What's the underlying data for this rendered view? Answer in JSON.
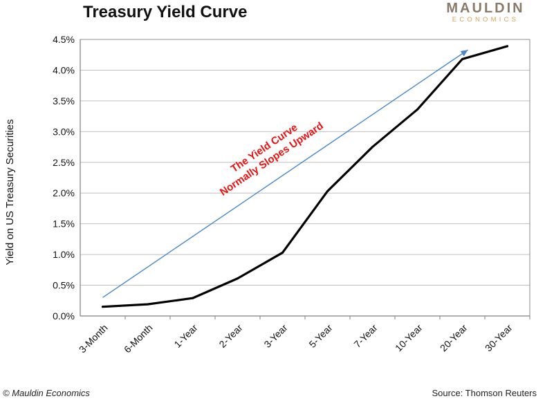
{
  "header": {
    "title": "Treasury Yield Curve",
    "logo_main": "MAULDIN",
    "logo_sub": "ECONOMICS"
  },
  "footer": {
    "copyright": "© Mauldin Economics",
    "source": "Source: Thomson Reuters"
  },
  "colors": {
    "curve": "#000000",
    "arrow": "#4a86c8",
    "annotation": "#ee1111",
    "grid": "#bfbfbf",
    "logo_main": "#8a7a6a",
    "logo_sub": "#d9a15a"
  },
  "chart_data": {
    "type": "line",
    "title": "Treasury Yield Curve",
    "ylabel": "Yield on US Treasury Securities",
    "xlabel": "",
    "ylim": [
      0,
      4.5
    ],
    "ytick_values": [
      0,
      0.5,
      1,
      1.5,
      2,
      2.5,
      3,
      3.5,
      4,
      4.5
    ],
    "ytick_labels": [
      "0.0%",
      "0.5%",
      "1.0%",
      "1.5%",
      "2.0%",
      "2.5%",
      "3.0%",
      "3.5%",
      "4.0%",
      "4.5%"
    ],
    "grid": "horizontal",
    "categories": [
      "3-Month",
      "6-Month",
      "1-Year",
      "2-Year",
      "3-Year",
      "5-Year",
      "7-Year",
      "10-Year",
      "20-Year",
      "30-Year"
    ],
    "series": [
      {
        "values": [
          0.15,
          0.19,
          0.29,
          0.61,
          1.03,
          2.03,
          2.75,
          3.36,
          4.18,
          4.39
        ]
      }
    ],
    "annotations": [
      {
        "lines": [
          "The Yield Curve",
          "Normally Slopes Upward"
        ],
        "arrow_from": {
          "category": "3-Month",
          "value": 0.3
        },
        "arrow_to": {
          "category": "20-Year",
          "value": 4.33
        }
      }
    ]
  }
}
